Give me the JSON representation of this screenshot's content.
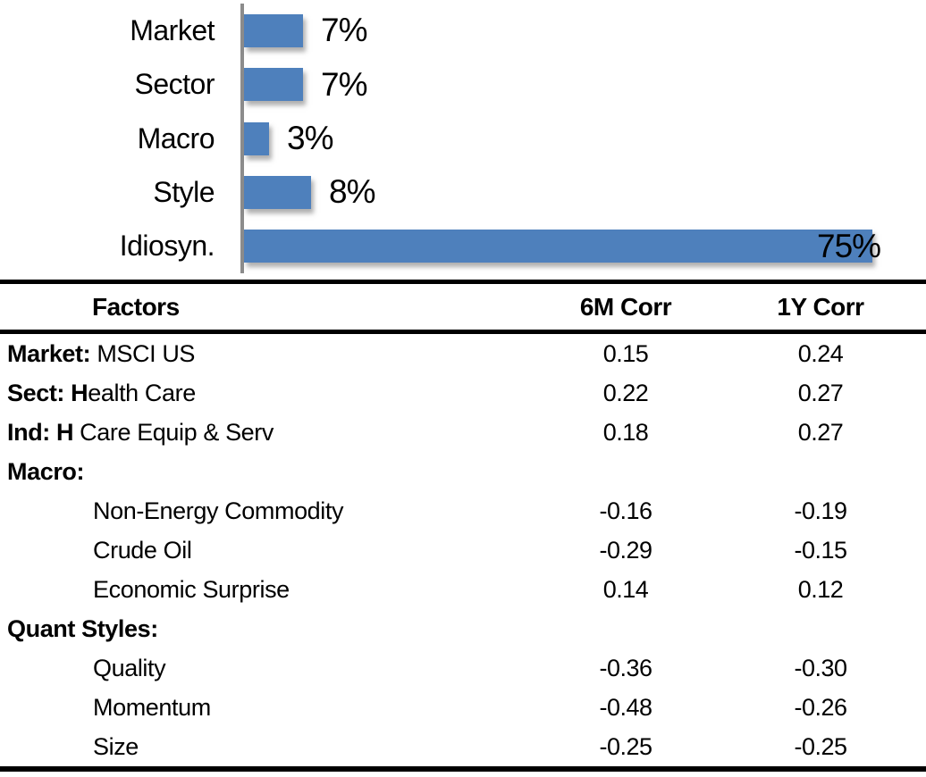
{
  "colors": {
    "bar_blue": "#4e80bc",
    "axis_gray": "#8c8c8c",
    "line_black": "#000000"
  },
  "chart_data": {
    "type": "bar",
    "orientation": "horizontal",
    "title": "",
    "xlabel": "",
    "ylabel": "",
    "xlim": [
      0,
      80
    ],
    "grid": false,
    "legend": false,
    "bar_color": "#4e80bc",
    "categories": [
      "Market",
      "Sector",
      "Macro",
      "Style",
      "Idiosyn."
    ],
    "values": [
      7,
      7,
      3,
      8,
      75
    ],
    "value_labels": [
      "7%",
      "7%",
      "3%",
      "8%",
      "75%"
    ],
    "label_overlaps_bar": [
      false,
      false,
      false,
      false,
      true
    ]
  },
  "table": {
    "headers": {
      "factors": "Factors",
      "corr6m": "6M Corr",
      "corr1y": "1Y Corr"
    },
    "rows": [
      {
        "bold": "Market:",
        "text": " MSCI US",
        "indent": false,
        "corr6m": "0.15",
        "corr1y": "0.24"
      },
      {
        "bold": "Sect: H",
        "text": "ealth Care",
        "indent": false,
        "corr6m": "0.22",
        "corr1y": "0.27"
      },
      {
        "bold": "Ind: H",
        "text": " Care Equip & Serv",
        "indent": false,
        "corr6m": "0.18",
        "corr1y": "0.27"
      },
      {
        "bold": "Macro:",
        "text": "",
        "indent": false,
        "corr6m": "",
        "corr1y": ""
      },
      {
        "bold": "",
        "text": "Non-Energy Commodity",
        "indent": true,
        "corr6m": "-0.16",
        "corr1y": "-0.19"
      },
      {
        "bold": "",
        "text": "Crude Oil",
        "indent": true,
        "corr6m": "-0.29",
        "corr1y": "-0.15"
      },
      {
        "bold": "",
        "text": "Economic Surprise",
        "indent": true,
        "corr6m": "0.14",
        "corr1y": "0.12"
      },
      {
        "bold": "Quant Styles:",
        "text": "",
        "indent": false,
        "corr6m": "",
        "corr1y": ""
      },
      {
        "bold": "",
        "text": "Quality",
        "indent": true,
        "corr6m": "-0.36",
        "corr1y": "-0.30"
      },
      {
        "bold": "",
        "text": "Momentum",
        "indent": true,
        "corr6m": "-0.48",
        "corr1y": "-0.26"
      },
      {
        "bold": "",
        "text": "Size",
        "indent": true,
        "corr6m": "-0.25",
        "corr1y": "-0.25"
      }
    ]
  }
}
